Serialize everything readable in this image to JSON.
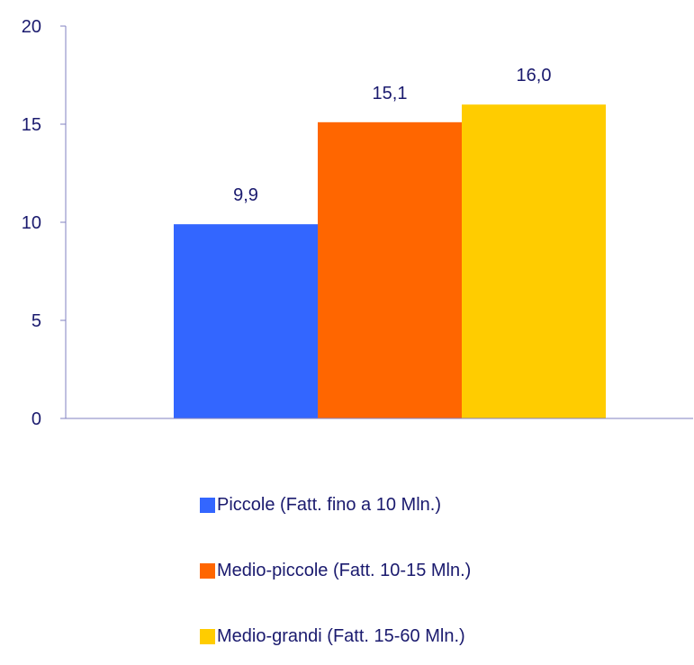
{
  "chart_data": {
    "type": "bar",
    "categories": [
      ""
    ],
    "series": [
      {
        "name": "Piccole (Fatt. fino a 10 Mln.)",
        "values": [
          9.9
        ],
        "label": "9,9",
        "color": "#3366ff"
      },
      {
        "name": "Medio-piccole (Fatt. 10-15 Mln.)",
        "values": [
          15.1
        ],
        "label": "15,1",
        "color": "#ff6600"
      },
      {
        "name": "Medio-grandi (Fatt. 15-60 Mln.)",
        "values": [
          16.0
        ],
        "label": "16,0",
        "color": "#ffcc00"
      }
    ],
    "ylim": [
      0,
      20
    ],
    "yticks": [
      0,
      5,
      10,
      15,
      20
    ],
    "ytick_labels": [
      "0",
      "5",
      "10",
      "15",
      "20"
    ],
    "grid": false,
    "legend_position": "bottom"
  },
  "colors": {
    "axis": "#8080c0",
    "text": "#1a1a6e"
  }
}
